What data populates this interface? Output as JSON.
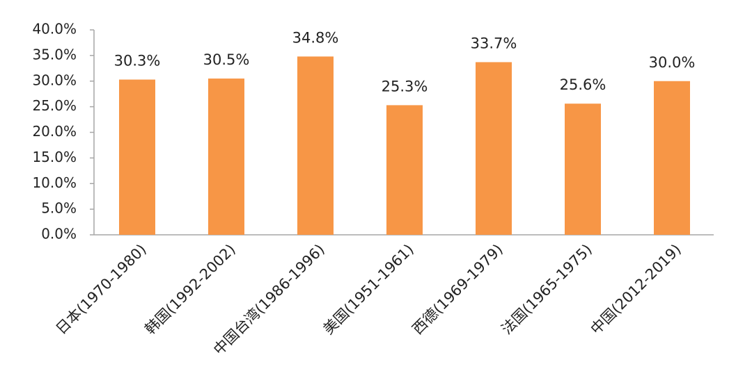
{
  "chart_data": {
    "type": "bar",
    "categories": [
      "日本(1970-1980)",
      "韩国(1992-2002)",
      "中国台湾(1986-1996)",
      "美国(1951-1961)",
      "西德(1969-1979)",
      "法国(1965-1975)",
      "中国(2012-2019)"
    ],
    "values": [
      30.3,
      30.5,
      34.8,
      25.3,
      33.7,
      25.6,
      30.0
    ],
    "value_labels": [
      "30.3%",
      "30.5%",
      "34.8%",
      "25.3%",
      "33.7%",
      "25.6%",
      "30.0%"
    ],
    "color": "#f79646",
    "ylim": [
      0,
      40
    ],
    "yticks": [
      {
        "value": 0,
        "label": "0.0%"
      },
      {
        "value": 5,
        "label": "5.0%"
      },
      {
        "value": 10,
        "label": "10.0%"
      },
      {
        "value": 15,
        "label": "15.0%"
      },
      {
        "value": 20,
        "label": "20.0%"
      },
      {
        "value": 25,
        "label": "25.0%"
      },
      {
        "value": 30,
        "label": "30.0%"
      },
      {
        "value": 35,
        "label": "35.0%"
      },
      {
        "value": 40,
        "label": "40.0%"
      }
    ],
    "grid": false
  }
}
